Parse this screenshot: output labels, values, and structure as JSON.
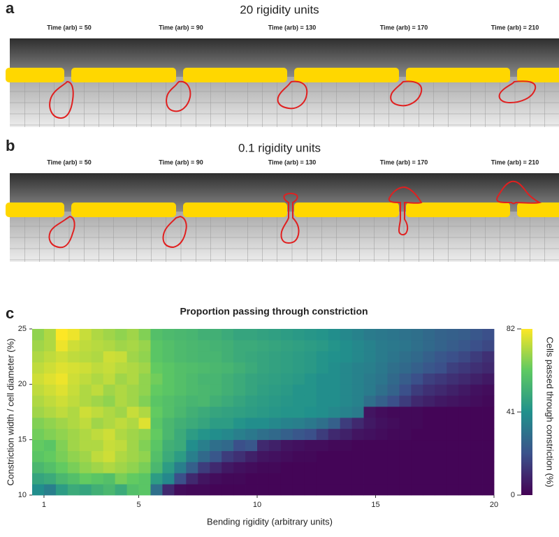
{
  "panel_a": {
    "label": "a",
    "title": "20 rigidity units",
    "times": [
      "Time (arb) = 50",
      "Time (arb) = 90",
      "Time (arb) = 130",
      "Time (arb) = 170",
      "Time (arb) = 210"
    ]
  },
  "panel_b": {
    "label": "b",
    "title": "0.1 rigidity units",
    "times": [
      "Time (arb) = 50",
      "Time (arb) = 90",
      "Time (arb) = 130",
      "Time (arb) = 170",
      "Time (arb) = 210"
    ]
  },
  "chart_data": {
    "type": "heatmap",
    "label": "c",
    "title": "Proportion passing through constriction",
    "xlabel": "Bending rigidity (arbitrary units)",
    "ylabel": "Constriction width / cell diameter (%)",
    "colorbar_label": "Cells passed through constriction (%)",
    "xlim": [
      0.5,
      20
    ],
    "ylim": [
      10,
      25
    ],
    "xticks": [
      1,
      5,
      10,
      15,
      20
    ],
    "yticks": [
      10,
      15,
      20,
      25
    ],
    "zlim": [
      0,
      82
    ],
    "zticks": [
      0,
      41,
      82
    ],
    "colormap": "viridis",
    "z": [
      [
        40,
        35,
        45,
        50,
        48,
        52,
        55,
        50,
        58,
        60,
        30,
        10,
        3,
        2,
        2,
        1,
        1,
        1,
        1,
        1,
        1,
        1,
        1,
        1,
        1,
        1,
        1,
        1,
        1,
        1,
        1,
        1,
        1,
        1,
        1,
        1,
        1,
        1,
        1
      ],
      [
        48,
        50,
        55,
        58,
        62,
        60,
        58,
        65,
        62,
        60,
        45,
        38,
        20,
        10,
        5,
        3,
        2,
        2,
        1,
        1,
        1,
        1,
        1,
        1,
        1,
        1,
        1,
        1,
        1,
        1,
        1,
        1,
        1,
        1,
        1,
        1,
        1,
        1,
        1
      ],
      [
        55,
        58,
        62,
        65,
        68,
        70,
        72,
        70,
        68,
        65,
        55,
        45,
        35,
        25,
        15,
        10,
        6,
        4,
        3,
        2,
        2,
        1,
        1,
        1,
        1,
        1,
        1,
        1,
        1,
        1,
        1,
        1,
        1,
        1,
        1,
        1,
        1,
        1,
        1
      ],
      [
        60,
        62,
        65,
        68,
        70,
        74,
        76,
        72,
        70,
        68,
        58,
        50,
        45,
        35,
        28,
        22,
        15,
        12,
        8,
        5,
        4,
        3,
        2,
        2,
        1,
        1,
        1,
        1,
        1,
        1,
        1,
        1,
        1,
        1,
        1,
        1,
        1,
        1,
        1
      ],
      [
        62,
        60,
        66,
        70,
        72,
        72,
        75,
        74,
        70,
        66,
        60,
        52,
        50,
        40,
        35,
        30,
        28,
        20,
        22,
        10,
        8,
        5,
        4,
        3,
        3,
        2,
        2,
        1,
        1,
        1,
        1,
        1,
        1,
        1,
        1,
        1,
        1,
        1,
        1
      ],
      [
        64,
        66,
        68,
        70,
        72,
        74,
        76,
        72,
        70,
        68,
        62,
        55,
        50,
        45,
        42,
        40,
        38,
        35,
        33,
        30,
        28,
        25,
        22,
        20,
        15,
        10,
        8,
        5,
        4,
        3,
        2,
        2,
        1,
        1,
        1,
        1,
        1,
        1,
        1
      ],
      [
        66,
        68,
        70,
        72,
        74,
        70,
        72,
        74,
        72,
        78,
        60,
        55,
        52,
        50,
        48,
        45,
        45,
        42,
        40,
        40,
        38,
        36,
        35,
        33,
        30,
        25,
        15,
        10,
        6,
        4,
        3,
        2,
        2,
        1,
        1,
        1,
        1,
        1,
        1
      ],
      [
        70,
        72,
        74,
        72,
        76,
        74,
        72,
        70,
        75,
        72,
        62,
        58,
        55,
        52,
        50,
        48,
        47,
        46,
        45,
        44,
        43,
        42,
        42,
        41,
        40,
        38,
        36,
        34,
        5,
        3,
        2,
        2,
        2,
        1,
        1,
        1,
        1,
        1,
        1
      ],
      [
        72,
        74,
        76,
        74,
        72,
        70,
        68,
        72,
        70,
        66,
        60,
        58,
        56,
        54,
        55,
        52,
        50,
        48,
        46,
        45,
        44,
        43,
        42,
        42,
        40,
        40,
        38,
        36,
        30,
        25,
        20,
        15,
        10,
        8,
        6,
        5,
        4,
        3,
        2
      ],
      [
        74,
        76,
        78,
        75,
        72,
        74,
        70,
        72,
        70,
        68,
        62,
        60,
        58,
        56,
        55,
        54,
        52,
        50,
        48,
        46,
        45,
        44,
        42,
        42,
        40,
        40,
        38,
        36,
        34,
        30,
        26,
        20,
        15,
        12,
        10,
        8,
        6,
        4,
        3
      ],
      [
        76,
        78,
        80,
        76,
        74,
        72,
        74,
        70,
        72,
        68,
        64,
        60,
        58,
        56,
        54,
        54,
        52,
        50,
        48,
        47,
        46,
        45,
        44,
        42,
        40,
        40,
        38,
        36,
        34,
        32,
        28,
        24,
        20,
        16,
        14,
        12,
        10,
        8,
        6
      ],
      [
        74,
        76,
        78,
        77,
        76,
        74,
        75,
        73,
        72,
        70,
        62,
        60,
        58,
        57,
        56,
        55,
        54,
        52,
        50,
        48,
        47,
        46,
        45,
        44,
        42,
        40,
        38,
        36,
        35,
        33,
        30,
        28,
        25,
        22,
        20,
        16,
        14,
        12,
        10
      ],
      [
        72,
        74,
        76,
        74,
        73,
        72,
        76,
        75,
        70,
        68,
        60,
        58,
        56,
        55,
        54,
        54,
        52,
        50,
        49,
        48,
        47,
        46,
        45,
        44,
        42,
        41,
        40,
        38,
        36,
        34,
        32,
        30,
        28,
        25,
        22,
        20,
        18,
        15,
        12
      ],
      [
        70,
        72,
        80,
        76,
        74,
        73,
        72,
        70,
        71,
        69,
        60,
        58,
        56,
        55,
        54,
        53,
        52,
        50,
        50,
        49,
        48,
        47,
        46,
        45,
        44,
        42,
        40,
        38,
        36,
        34,
        33,
        32,
        30,
        28,
        26,
        24,
        22,
        20,
        18
      ],
      [
        68,
        72,
        82,
        80,
        75,
        72,
        70,
        68,
        70,
        66,
        58,
        56,
        55,
        54,
        52,
        52,
        50,
        48,
        48,
        47,
        46,
        45,
        44,
        43,
        42,
        40,
        38,
        36,
        34,
        33,
        32,
        31,
        30,
        28,
        26,
        25,
        24,
        22,
        20
      ]
    ]
  }
}
